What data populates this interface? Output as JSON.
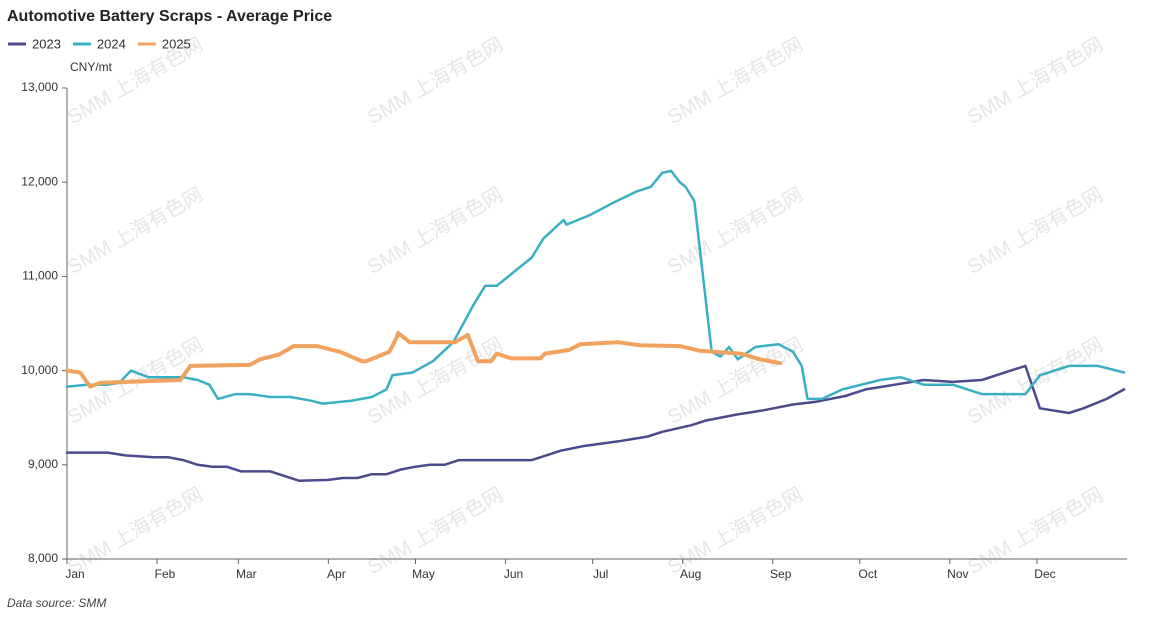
{
  "chart_data": {
    "type": "line",
    "title": "Automotive Battery Scraps - Average Price",
    "y_label": "CNY/mt",
    "source": "Data source:  SMM",
    "watermark": "SMM 上海有色网",
    "legend": "top-left",
    "xlim": [
      0,
      365
    ],
    "xticks": [
      {
        "value": 0,
        "label": "Jan"
      },
      {
        "value": 31,
        "label": "Feb"
      },
      {
        "value": 59,
        "label": "Mar"
      },
      {
        "value": 90,
        "label": "Apr"
      },
      {
        "value": 120,
        "label": "May"
      },
      {
        "value": 151,
        "label": "Jun"
      },
      {
        "value": 181,
        "label": "Jul"
      },
      {
        "value": 212,
        "label": "Aug"
      },
      {
        "value": 243,
        "label": "Sep"
      },
      {
        "value": 273,
        "label": "Oct"
      },
      {
        "value": 304,
        "label": "Nov"
      },
      {
        "value": 334,
        "label": "Dec"
      }
    ],
    "ylim": [
      8000,
      13000
    ],
    "yticks": [
      {
        "value": 8000,
        "label": "8,000"
      },
      {
        "value": 9000,
        "label": "9,000"
      },
      {
        "value": 10000,
        "label": "10,000"
      },
      {
        "value": 11000,
        "label": "11,000"
      },
      {
        "value": 12000,
        "label": "12,000"
      },
      {
        "value": 13000,
        "label": "13,000"
      }
    ],
    "series": [
      {
        "name": "2023",
        "color": "#4b4a8c",
        "x": [
          0,
          14,
          20,
          30,
          35,
          40,
          45,
          50,
          55,
          60,
          70,
          75,
          80,
          90,
          95,
          100,
          105,
          110,
          115,
          120,
          125,
          130,
          135,
          155,
          160,
          165,
          170,
          178,
          190,
          200,
          205,
          215,
          220,
          230,
          240,
          250,
          258,
          268,
          275,
          285,
          295,
          305,
          315,
          325,
          330,
          335,
          345,
          350,
          358,
          364
        ],
        "values": [
          9130,
          9130,
          9100,
          9080,
          9080,
          9050,
          9000,
          8980,
          8980,
          8930,
          8930,
          8880,
          8830,
          8840,
          8860,
          8860,
          8900,
          8900,
          8950,
          8980,
          9000,
          9000,
          9050,
          9050,
          9050,
          9100,
          9150,
          9200,
          9250,
          9300,
          9350,
          9420,
          9470,
          9530,
          9580,
          9640,
          9670,
          9730,
          9800,
          9850,
          9900,
          9880,
          9900,
          10000,
          10050,
          9600,
          9550,
          9600,
          9700,
          9800
        ]
      },
      {
        "name": "2024",
        "color": "#3aafc4",
        "x": [
          0,
          7,
          14,
          18,
          22,
          28,
          40,
          45,
          49,
          52,
          58,
          63,
          70,
          77,
          84,
          88,
          98,
          105,
          110,
          112,
          119,
          126,
          133,
          140,
          144,
          148,
          152,
          156,
          160,
          164,
          171,
          172,
          180,
          188,
          196,
          201,
          205,
          208,
          211,
          213,
          216,
          219,
          222,
          225,
          228,
          231,
          237,
          245,
          250,
          253,
          255,
          260,
          267,
          280,
          287,
          295,
          305,
          315,
          330,
          335,
          345,
          355,
          364
        ],
        "values": [
          9830,
          9850,
          9850,
          9870,
          10000,
          9930,
          9930,
          9900,
          9850,
          9700,
          9750,
          9750,
          9720,
          9720,
          9680,
          9650,
          9680,
          9720,
          9800,
          9950,
          9980,
          10100,
          10300,
          10700,
          10900,
          10900,
          11000,
          11100,
          11200,
          11400,
          11600,
          11550,
          11650,
          11780,
          11900,
          11950,
          12100,
          12120,
          12000,
          11950,
          11800,
          11000,
          10200,
          10150,
          10250,
          10120,
          10250,
          10280,
          10200,
          10050,
          9700,
          9700,
          9800,
          9900,
          9930,
          9850,
          9850,
          9750,
          9750,
          9950,
          10050,
          10050,
          9980
        ]
      },
      {
        "name": "2025",
        "color": "#f0a25e",
        "x": [
          0,
          4.5,
          8,
          11.5,
          39,
          42.5,
          63,
          66.5,
          73,
          78,
          86,
          94,
          101.5,
          103,
          111,
          113.5,
          114,
          118,
          125,
          133.6,
          138,
          141.5,
          146,
          148,
          153,
          163,
          164.6,
          173,
          176.7,
          190,
          197,
          211,
          218,
          232,
          238.6,
          245.5
        ],
        "values": [
          10000,
          9980,
          9830,
          9870,
          9900,
          10050,
          10060,
          10120,
          10170,
          10260,
          10260,
          10200,
          10100,
          10100,
          10200,
          10350,
          10400,
          10300,
          10300,
          10300,
          10380,
          10100,
          10100,
          10180,
          10130,
          10130,
          10180,
          10220,
          10280,
          10300,
          10270,
          10260,
          10210,
          10180,
          10120,
          10080
        ]
      }
    ]
  }
}
